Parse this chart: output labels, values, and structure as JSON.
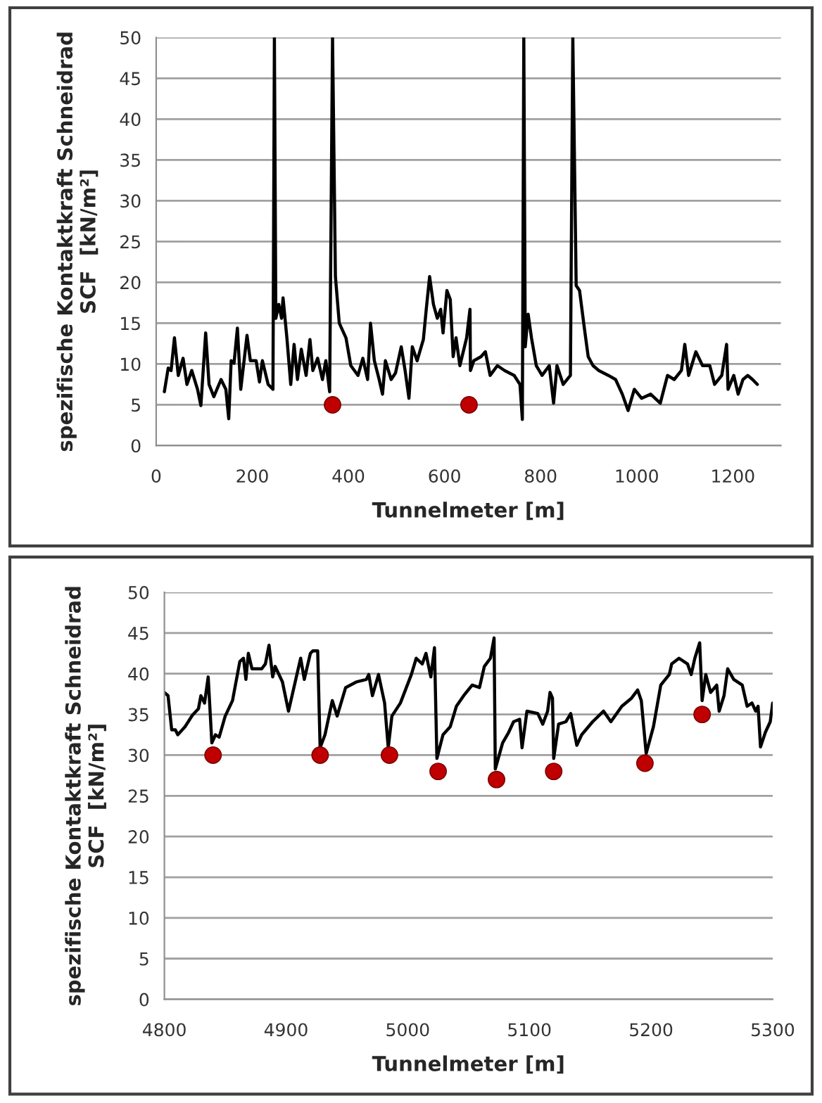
{
  "chart_data": [
    {
      "type": "line",
      "xlabel": "Tunnelmeter [m]",
      "ylabel": "spezifische Kontaktkraft Schneidrad\nSCF  [kN/m²]",
      "xlim": [
        0,
        1300
      ],
      "xticks": [
        0,
        200,
        400,
        600,
        800,
        1000,
        1200
      ],
      "ylim": [
        0,
        50
      ],
      "yticks": [
        0,
        5,
        10,
        15,
        20,
        25,
        30,
        35,
        40,
        45,
        50
      ],
      "grid": "y",
      "legend": false,
      "series": [
        {
          "color": "#000000",
          "marker": "none",
          "line_style": "solid",
          "x": [
            17,
            25,
            31,
            38,
            46,
            56,
            64,
            74,
            86,
            93,
            103,
            110,
            120,
            135,
            145,
            151,
            156,
            162,
            169,
            176,
            189,
            196,
            208,
            215,
            221,
            233,
            243,
            246,
            249,
            255,
            261,
            264,
            272,
            280,
            287,
            294,
            302,
            312,
            320,
            326,
            336,
            346,
            353,
            361,
            367,
            373,
            381,
            395,
            405,
            420,
            430,
            440,
            446,
            454,
            464,
            471,
            477,
            489,
            498,
            510,
            518,
            526,
            533,
            543,
            556,
            562,
            569,
            577,
            585,
            592,
            597,
            605,
            612,
            618,
            624,
            632,
            646,
            653,
            654,
            661,
            676,
            685,
            695,
            710,
            725,
            745,
            757,
            762,
            765,
            768,
            774,
            781,
            791,
            803,
            818,
            827,
            834,
            847,
            862,
            867,
            874,
            881,
            891,
            899,
            909,
            921,
            941,
            956,
            970,
            982,
            995,
            1010,
            1029,
            1049,
            1064,
            1078,
            1093,
            1100,
            1108,
            1123,
            1137,
            1152,
            1162,
            1177,
            1187,
            1190,
            1202,
            1211,
            1221,
            1231,
            1241,
            1251
          ],
          "values": [
            6.6,
            9.5,
            9.2,
            13.2,
            8.6,
            10.7,
            7.5,
            9.2,
            6.9,
            4.9,
            13.8,
            7.5,
            6.0,
            8.1,
            6.9,
            3.3,
            10.4,
            10.1,
            14.4,
            6.9,
            13.5,
            10.4,
            10.4,
            7.8,
            10.4,
            7.5,
            6.9,
            50,
            15.6,
            17.3,
            15.6,
            18.1,
            13.2,
            7.5,
            12.4,
            8.1,
            11.8,
            8.6,
            13.0,
            9.2,
            10.7,
            8.1,
            10.4,
            6.6,
            50,
            20.7,
            15.0,
            13.2,
            9.8,
            8.6,
            10.7,
            8.1,
            15.0,
            10.4,
            8.1,
            6.3,
            10.4,
            8.1,
            8.9,
            12.1,
            9.2,
            5.8,
            12.1,
            10.4,
            13.0,
            16.7,
            20.7,
            17.3,
            15.6,
            16.7,
            13.8,
            19.0,
            17.9,
            10.9,
            13.2,
            9.8,
            13.2,
            16.7,
            9.2,
            10.4,
            10.9,
            11.5,
            8.6,
            9.8,
            9.2,
            8.6,
            7.5,
            3.2,
            50,
            12.1,
            16.1,
            13.2,
            9.8,
            8.6,
            9.8,
            5.2,
            9.8,
            7.5,
            8.6,
            50,
            19.6,
            19.0,
            14.4,
            10.9,
            9.8,
            9.2,
            8.6,
            8.1,
            6.3,
            4.3,
            6.9,
            5.8,
            6.3,
            5.2,
            8.6,
            8.1,
            9.2,
            12.4,
            8.6,
            11.5,
            9.8,
            9.8,
            7.5,
            8.6,
            12.4,
            6.9,
            8.6,
            6.3,
            8.1,
            8.6,
            8.1,
            7.5
          ]
        },
        {
          "type": "scatter",
          "color": "#c00000",
          "marker": "circle",
          "x": [
            367,
            651
          ],
          "values": [
            5,
            5
          ]
        }
      ]
    },
    {
      "type": "line",
      "xlabel": "Tunnelmeter [m]",
      "ylabel": "spezifische Kontaktkraft Schneidrad\nSCF  [kN/m²]",
      "xlim": [
        4800,
        5300
      ],
      "xticks": [
        4800,
        4900,
        5000,
        5100,
        5200,
        5300
      ],
      "ylim": [
        0,
        50
      ],
      "yticks": [
        0,
        5,
        10,
        15,
        20,
        25,
        30,
        35,
        40,
        45,
        50
      ],
      "grid": "y",
      "legend": false,
      "series": [
        {
          "color": "#000000",
          "marker": "none",
          "line_style": "solid",
          "x": [
            4800,
            4803,
            4806,
            4809,
            4811,
            4817,
            4823,
            4828,
            4830,
            4833,
            4836,
            4839,
            4842,
            4845,
            4850,
            4856,
            4862,
            4865,
            4867,
            4869,
            4872,
            4880,
            4883,
            4886,
            4889,
            4891,
            4897,
            4902,
            4908,
            4912,
            4915,
            4920,
            4922,
            4926,
            4928,
            4932,
            4938,
            4942,
            4949,
            4958,
            4966,
            4968,
            4971,
            4976,
            4981,
            4984,
            4987,
            4994,
            5003,
            5007,
            5012,
            5015,
            5019,
            5022,
            5024,
            5029,
            5035,
            5040,
            5046,
            5053,
            5059,
            5063,
            5068,
            5071,
            5072,
            5078,
            5083,
            5087,
            5092,
            5094,
            5098,
            5107,
            5111,
            5115,
            5117,
            5119,
            5120,
            5124,
            5130,
            5134,
            5139,
            5143,
            5152,
            5161,
            5167,
            5176,
            5184,
            5189,
            5192,
            5196,
            5202,
            5208,
            5215,
            5217,
            5223,
            5230,
            5233,
            5236,
            5240,
            5242,
            5245,
            5249,
            5254,
            5256,
            5260,
            5263,
            5268,
            5275,
            5279,
            5283,
            5286,
            5288,
            5290,
            5294,
            5298,
            5300
          ],
          "values": [
            37.7,
            37.3,
            33.1,
            33.1,
            32.5,
            33.5,
            34.9,
            35.7,
            37.3,
            36.4,
            39.6,
            31.5,
            32.5,
            32.2,
            34.8,
            36.7,
            41.5,
            41.9,
            39.3,
            42.5,
            40.6,
            40.6,
            41.2,
            43.5,
            39.6,
            40.9,
            39.0,
            35.4,
            39.3,
            41.9,
            39.3,
            42.5,
            42.8,
            42.8,
            30.9,
            32.5,
            36.7,
            34.8,
            38.3,
            39.0,
            39.3,
            39.9,
            37.3,
            39.9,
            36.4,
            30.9,
            34.8,
            36.4,
            39.9,
            41.9,
            41.2,
            42.5,
            39.6,
            43.2,
            29.6,
            32.5,
            33.5,
            36.0,
            37.3,
            38.6,
            38.3,
            40.9,
            41.9,
            44.4,
            28.3,
            31.5,
            32.8,
            34.1,
            34.4,
            30.9,
            35.4,
            35.1,
            33.8,
            35.4,
            37.7,
            37.0,
            29.6,
            33.8,
            34.1,
            35.1,
            31.2,
            32.5,
            34.1,
            35.4,
            34.1,
            36.0,
            37.0,
            38.0,
            36.7,
            30.2,
            33.5,
            38.6,
            39.9,
            41.2,
            41.9,
            41.2,
            39.9,
            41.9,
            43.8,
            36.7,
            39.9,
            37.7,
            38.6,
            35.4,
            37.3,
            40.6,
            39.3,
            38.6,
            36.0,
            36.4,
            35.4,
            36.0,
            31.0,
            32.8,
            34.1,
            36.4
          ]
        },
        {
          "type": "scatter",
          "color": "#c00000",
          "marker": "circle",
          "x": [
            4840,
            4928,
            4985,
            5025,
            5073,
            5120,
            5195,
            5242
          ],
          "values": [
            30,
            30,
            30,
            28,
            27,
            28,
            29,
            35
          ]
        }
      ]
    }
  ]
}
